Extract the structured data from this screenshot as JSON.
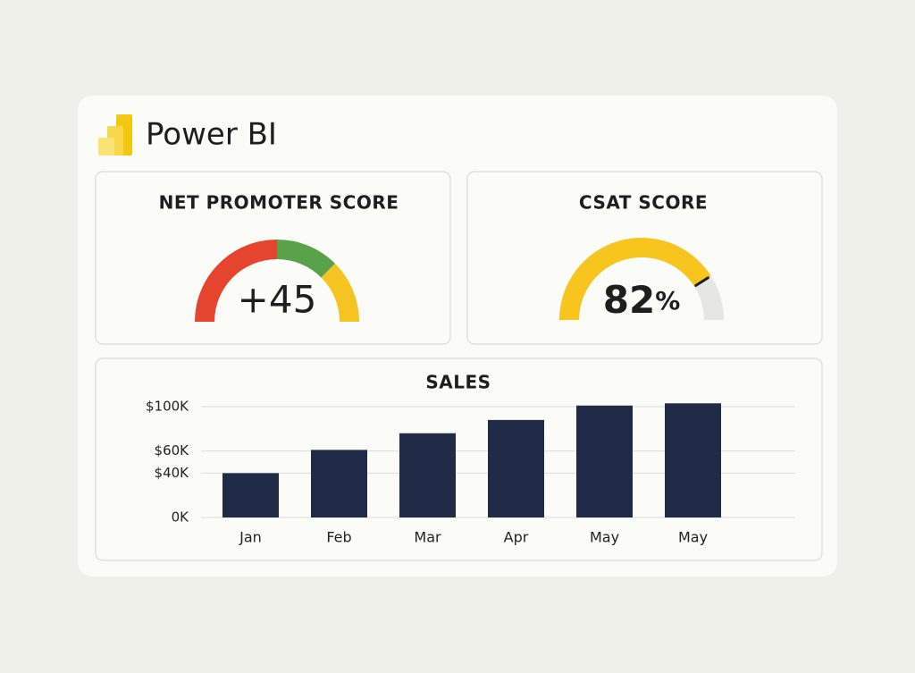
{
  "header": {
    "title": "Power BI"
  },
  "chart_data": [
    {
      "type": "gauge",
      "title": "NET PROMOTER SCORE",
      "value": 45,
      "value_label": "+45",
      "range": [
        -100,
        100
      ],
      "bands": [
        {
          "from": -100,
          "to": 0,
          "color": "#e5452f"
        },
        {
          "from": 0,
          "to": 50,
          "color": "#5aa24a"
        },
        {
          "from": 50,
          "to": 100,
          "color": "#f5c423"
        }
      ]
    },
    {
      "type": "gauge",
      "title": "CSAT SCORE",
      "value": 82,
      "unit": "%",
      "range": [
        0,
        100
      ],
      "color": "#f7c51e",
      "track_color": "#e6e6e2"
    },
    {
      "type": "bar",
      "title": "SALES",
      "categories": [
        "Jan",
        "Feb",
        "Mar",
        "Apr",
        "May",
        "May"
      ],
      "values": [
        40000,
        61000,
        76000,
        88000,
        101000,
        103000
      ],
      "color": "#1f2b47",
      "ylim": [
        0,
        110000
      ],
      "yticks": [
        {
          "value": 0,
          "label": "0K"
        },
        {
          "value": 40000,
          "label": "$40K"
        },
        {
          "value": 60000,
          "label": "$60K"
        },
        {
          "value": 100000,
          "label": "$100K"
        }
      ],
      "grid": true
    }
  ]
}
